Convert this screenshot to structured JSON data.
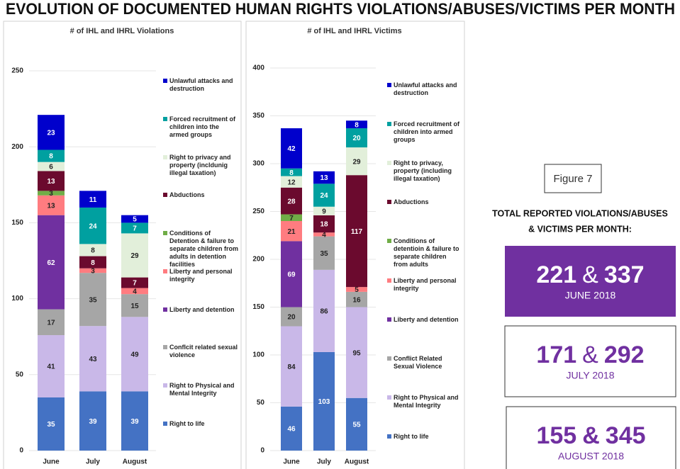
{
  "title": "EVOLUTION OF DOCUMENTED HUMAN RIGHTS VIOLATIONS/ABUSES/VICTIMS PER MONTH",
  "chart_data": [
    {
      "type": "bar",
      "stacked": true,
      "title": "# of IHL and IHRL Violations",
      "categories": [
        "June",
        "July",
        "August"
      ],
      "ylim": [
        0,
        250
      ],
      "yticks": [
        0,
        50,
        100,
        150,
        200,
        250
      ],
      "grid": true,
      "series": [
        {
          "name": "Right to life",
          "color": "#4472c4",
          "values": [
            35,
            39,
            39
          ]
        },
        {
          "name": "Right to Physical and Mental Integrity",
          "color": "#c9b8e8",
          "values": [
            41,
            43,
            49
          ]
        },
        {
          "name": "Conflcit related sexual violence",
          "color": "#a6a6a6",
          "values": [
            17,
            35,
            15
          ]
        },
        {
          "name": "Liberty and detention",
          "color": "#7030a0",
          "values": [
            62,
            0,
            0
          ]
        },
        {
          "name": "Liberty and personal integrity",
          "color": "#ff7c80",
          "values": [
            13,
            3,
            4
          ]
        },
        {
          "name": "Conditions of Detention & failure to separate children from adults in detention facilities",
          "color": "#70ad47",
          "values": [
            3,
            0,
            0
          ]
        },
        {
          "name": "Abductions",
          "color": "#6b0a2e",
          "values": [
            13,
            8,
            7
          ]
        },
        {
          "name": "Right to privacy and property (incldunig illegal taxation)",
          "color": "#e2efda",
          "values": [
            6,
            8,
            29
          ]
        },
        {
          "name": "Forced recruitment of children into the armed groups",
          "color": "#00a0a0",
          "values": [
            8,
            24,
            7
          ]
        },
        {
          "name": "Unlawful attacks and destruction",
          "color": "#0000cc",
          "values": [
            23,
            11,
            5
          ]
        }
      ]
    },
    {
      "type": "bar",
      "stacked": true,
      "title": "# of IHL and IHRL Victims",
      "categories": [
        "June",
        "July",
        "August"
      ],
      "ylim": [
        0,
        400
      ],
      "yticks": [
        0,
        50,
        100,
        150,
        200,
        250,
        300,
        350,
        400
      ],
      "grid": true,
      "series": [
        {
          "name": "Right to life",
          "color": "#4472c4",
          "values": [
            46,
            103,
            55
          ]
        },
        {
          "name": "Right to Physical and Mental Integrity",
          "color": "#c9b8e8",
          "values": [
            84,
            86,
            95
          ]
        },
        {
          "name": "Conflict Related Sexual Violence",
          "color": "#a6a6a6",
          "values": [
            20,
            35,
            16
          ]
        },
        {
          "name": "Liberty and detention",
          "color": "#7030a0",
          "values": [
            69,
            0,
            0
          ]
        },
        {
          "name": "Liberty and personal integrity",
          "color": "#ff7c80",
          "values": [
            21,
            4,
            5
          ]
        },
        {
          "name": "Conditions of detentioin & failure to separate children from adults",
          "color": "#70ad47",
          "values": [
            7,
            0,
            0
          ]
        },
        {
          "name": "Abductions",
          "color": "#6b0a2e",
          "values": [
            28,
            18,
            117
          ]
        },
        {
          "name": "Right to privacy, property (including illegal taxation)",
          "color": "#e2efda",
          "values": [
            12,
            9,
            29
          ]
        },
        {
          "name": "Forced recruitment of children into armed groups",
          "color": "#00a0a0",
          "values": [
            8,
            24,
            20
          ]
        },
        {
          "name": "Unlawful attacks and destruction",
          "color": "#0000cc",
          "values": [
            42,
            13,
            8
          ]
        }
      ]
    }
  ],
  "panel": {
    "figure": "Figure 7",
    "heading": [
      "TOTAL REPORTED VIOLATIONS/ABUSES",
      "& VICTIMS PER MONTH:"
    ],
    "separator": "&",
    "boxes": [
      {
        "violations": 221,
        "victims": 337,
        "label": "JUNE 2018"
      },
      {
        "violations": 171,
        "victims": 292,
        "label": "JULY 2018"
      },
      {
        "violations": 155,
        "victims": 345,
        "label": "AUGUST 2018"
      }
    ]
  }
}
